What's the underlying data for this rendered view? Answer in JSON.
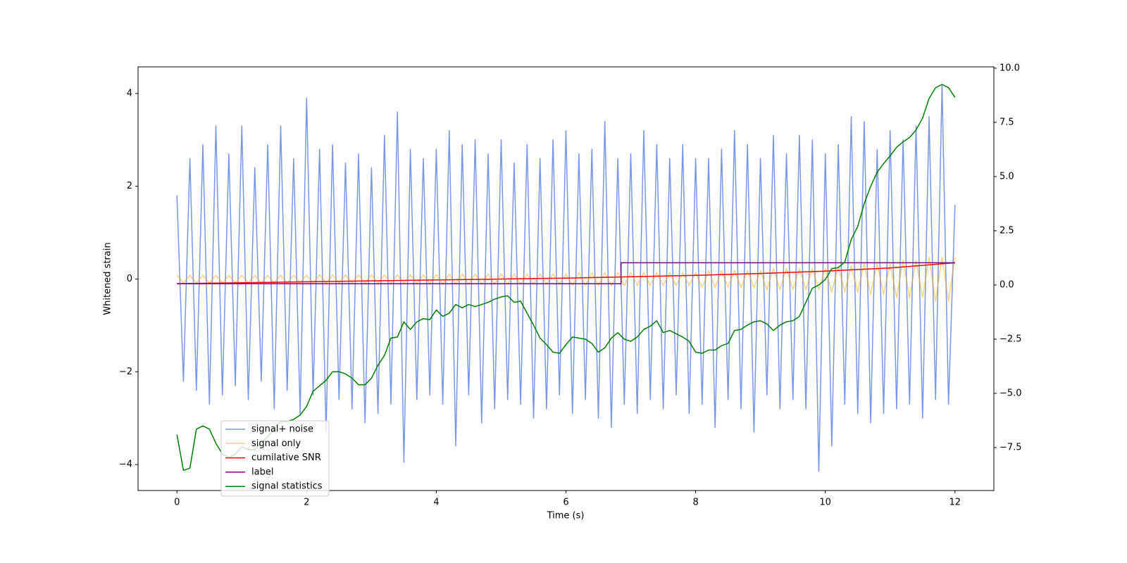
{
  "chart_data": {
    "type": "line",
    "xlabel": "Time (s)",
    "ylabel": "Whitened strain",
    "xlim": [
      -0.6,
      12.6
    ],
    "xticks": [
      0,
      2,
      4,
      6,
      8,
      10,
      12
    ],
    "ylim": [
      -4.56,
      4.575
    ],
    "yticks": [
      {
        "value": -4,
        "label": "−4"
      },
      {
        "value": -2,
        "label": "−2"
      },
      0,
      2,
      4
    ],
    "y2lim": [
      -9.48,
      10.06
    ],
    "y2ticks": [
      {
        "value": -7.5,
        "label": "−7.5"
      },
      {
        "value": -5,
        "label": "−5.0"
      },
      {
        "value": -2.5,
        "label": "−2.5"
      },
      {
        "value": 0,
        "label": "0.0"
      },
      2.5,
      {
        "value": 5,
        "label": "5.0"
      },
      7.5,
      {
        "value": 10,
        "label": "10.0"
      }
    ],
    "x": [
      0,
      0.1,
      0.2,
      0.3,
      0.4,
      0.5,
      0.6,
      0.7,
      0.8,
      0.9,
      1,
      1.1,
      1.2,
      1.3,
      1.4,
      1.5,
      1.6,
      1.7,
      1.8,
      1.9,
      2,
      2.1,
      2.2,
      2.3,
      2.4,
      2.5,
      2.6,
      2.7,
      2.8,
      2.9,
      3,
      3.1,
      3.2,
      3.3,
      3.4,
      3.5,
      3.6,
      3.7,
      3.8,
      3.9,
      4,
      4.1,
      4.2,
      4.3,
      4.4,
      4.5,
      4.6,
      4.7,
      4.8,
      4.9,
      5,
      5.1,
      5.2,
      5.3,
      5.4,
      5.5,
      5.6,
      5.7,
      5.8,
      5.9,
      6,
      6.1,
      6.2,
      6.3,
      6.4,
      6.5,
      6.6,
      6.7,
      6.8,
      6.9,
      7,
      7.1,
      7.2,
      7.3,
      7.4,
      7.5,
      7.6,
      7.7,
      7.8,
      7.9,
      8,
      8.1,
      8.2,
      8.3,
      8.4,
      8.5,
      8.6,
      8.7,
      8.8,
      8.9,
      9,
      9.1,
      9.2,
      9.3,
      9.4,
      9.5,
      9.6,
      9.7,
      9.8,
      9.9,
      10,
      10.1,
      10.2,
      10.3,
      10.4,
      10.5,
      10.6,
      10.7,
      10.8,
      10.9,
      11,
      11.1,
      11.2,
      11.3,
      11.4,
      11.5,
      11.6,
      11.7,
      11.8,
      11.9,
      12
    ],
    "series": [
      {
        "name": "signal+ noise",
        "color": "#4169e1",
        "opacity": 0.7,
        "values": [
          1.8,
          -2.2,
          2.6,
          -2.4,
          2.9,
          -2.7,
          3.3,
          -2.5,
          2.7,
          -2.3,
          3.3,
          -2.6,
          2.4,
          -2.2,
          2.9,
          -2.8,
          3.3,
          -2.4,
          2.6,
          -2.9,
          3.9,
          -2.5,
          2.8,
          -3.3,
          2.9,
          -2.6,
          2.5,
          -2.8,
          2.7,
          -3.1,
          2.4,
          -2.9,
          3.1,
          -2.7,
          3.6,
          -3.95,
          2.8,
          -2.6,
          2.6,
          -2.5,
          2.8,
          -2.7,
          3.2,
          -3.6,
          2.9,
          -2.5,
          3.0,
          -3.1,
          2.7,
          -2.8,
          3.0,
          -2.6,
          2.5,
          -2.7,
          2.9,
          -3.0,
          2.6,
          -2.8,
          3.0,
          -2.5,
          3.2,
          -2.9,
          2.7,
          -2.6,
          2.8,
          -3.0,
          3.4,
          -3.2,
          2.6,
          -2.7,
          2.7,
          -2.9,
          3.2,
          -2.6,
          2.9,
          -2.8,
          2.6,
          -2.5,
          2.9,
          -2.9,
          2.6,
          -2.7,
          2.6,
          -3.2,
          2.8,
          -2.6,
          3.2,
          -2.8,
          2.9,
          -3.3,
          2.6,
          -2.5,
          3.1,
          -2.8,
          2.7,
          -2.6,
          3.1,
          -2.8,
          3.0,
          -4.15,
          2.7,
          -3.6,
          2.9,
          -2.7,
          3.5,
          -2.9,
          3.4,
          -3.1,
          2.8,
          -2.9,
          3.2,
          -2.8,
          3.0,
          -2.7,
          3.3,
          -3.0,
          3.5,
          -2.6,
          4.2,
          -2.7,
          1.6
        ]
      },
      {
        "name": "signal only",
        "color": "#ffa500",
        "opacity": 0.5,
        "values": [
          0.08,
          -0.08,
          0.08,
          -0.08,
          0.08,
          -0.08,
          0.08,
          -0.08,
          0.08,
          -0.08,
          0.08,
          -0.08,
          0.08,
          -0.08,
          0.08,
          -0.08,
          0.08,
          -0.08,
          0.08,
          -0.08,
          0.08,
          -0.09,
          0.09,
          -0.09,
          0.09,
          -0.09,
          0.09,
          -0.09,
          0.09,
          -0.09,
          0.09,
          -0.09,
          0.09,
          -0.09,
          0.09,
          -0.09,
          0.09,
          -0.09,
          0.09,
          -0.09,
          0.09,
          -0.11,
          0.11,
          -0.11,
          0.11,
          -0.11,
          0.11,
          -0.11,
          0.11,
          -0.11,
          0.11,
          -0.11,
          0.11,
          -0.11,
          0.11,
          -0.11,
          0.11,
          -0.11,
          0.11,
          -0.11,
          0.11,
          -0.14,
          0.14,
          -0.14,
          0.14,
          -0.14,
          0.14,
          -0.14,
          0.14,
          -0.14,
          0.14,
          -0.14,
          0.14,
          -0.14,
          0.14,
          -0.14,
          0.14,
          -0.14,
          0.14,
          -0.14,
          0.14,
          -0.18,
          0.18,
          -0.18,
          0.18,
          -0.18,
          0.18,
          -0.18,
          0.18,
          -0.18,
          0.18,
          -0.23,
          0.23,
          -0.23,
          0.23,
          -0.23,
          0.23,
          -0.23,
          0.23,
          -0.23,
          0.23,
          -0.28,
          0.28,
          -0.28,
          0.28,
          -0.28,
          0.33,
          -0.33,
          0.33,
          -0.33,
          0.33,
          -0.4,
          0.4,
          -0.4,
          0.4,
          -0.4,
          0.48,
          -0.48,
          0.48,
          -0.48,
          0.48
        ]
      },
      {
        "name": "cumilative SNR",
        "color": "#ff0000",
        "opacity": 1,
        "x": [
          0,
          1,
          2,
          3,
          4,
          5,
          6,
          7,
          8,
          9,
          10,
          11,
          12
        ],
        "values": [
          -0.1,
          -0.08,
          -0.06,
          -0.04,
          -0.02,
          0.0,
          0.02,
          0.05,
          0.08,
          0.12,
          0.17,
          0.24,
          0.35
        ]
      },
      {
        "name": "label",
        "color": "#800080",
        "opacity": 1,
        "x": [
          0,
          6.85,
          6.85,
          12
        ],
        "values": [
          -0.1,
          -0.1,
          0.35,
          0.35
        ]
      },
      {
        "name": "signal statistics",
        "color": "#008000",
        "opacity": 1,
        "axis": "y2",
        "values": [
          -6.9,
          -8.55,
          -8.45,
          -6.65,
          -6.5,
          -6.65,
          -7.3,
          -7.8,
          -7.95,
          -7.8,
          -7.45,
          -7.6,
          -7.6,
          -7.3,
          -7.0,
          -6.6,
          -6.3,
          -6.3,
          -6.2,
          -6.0,
          -5.6,
          -4.9,
          -4.65,
          -4.4,
          -4.0,
          -4.0,
          -4.1,
          -4.3,
          -4.6,
          -4.6,
          -4.3,
          -3.7,
          -3.25,
          -2.45,
          -2.4,
          -1.7,
          -2.05,
          -1.7,
          -1.55,
          -1.6,
          -1.15,
          -1.45,
          -1.3,
          -0.9,
          -1.05,
          -0.9,
          -1.0,
          -0.9,
          -0.8,
          -0.65,
          -0.55,
          -0.5,
          -0.8,
          -0.75,
          -1.3,
          -1.85,
          -2.45,
          -2.75,
          -3.1,
          -3.15,
          -2.75,
          -2.4,
          -2.45,
          -2.5,
          -2.7,
          -3.1,
          -2.9,
          -2.45,
          -2.2,
          -2.5,
          -2.6,
          -2.4,
          -2.05,
          -1.9,
          -1.65,
          -2.2,
          -2.1,
          -2.25,
          -2.4,
          -2.6,
          -3.1,
          -3.15,
          -3.0,
          -3.0,
          -2.8,
          -2.7,
          -2.1,
          -2.05,
          -1.85,
          -1.7,
          -1.65,
          -1.8,
          -2.1,
          -1.85,
          -1.7,
          -1.65,
          -1.45,
          -0.8,
          -0.15,
          0.0,
          0.25,
          0.75,
          0.8,
          1.05,
          2.1,
          2.7,
          3.75,
          4.55,
          5.2,
          5.6,
          5.95,
          6.35,
          6.6,
          6.8,
          7.15,
          7.7,
          8.6,
          9.1,
          9.25,
          9.1,
          8.65
        ]
      }
    ]
  }
}
